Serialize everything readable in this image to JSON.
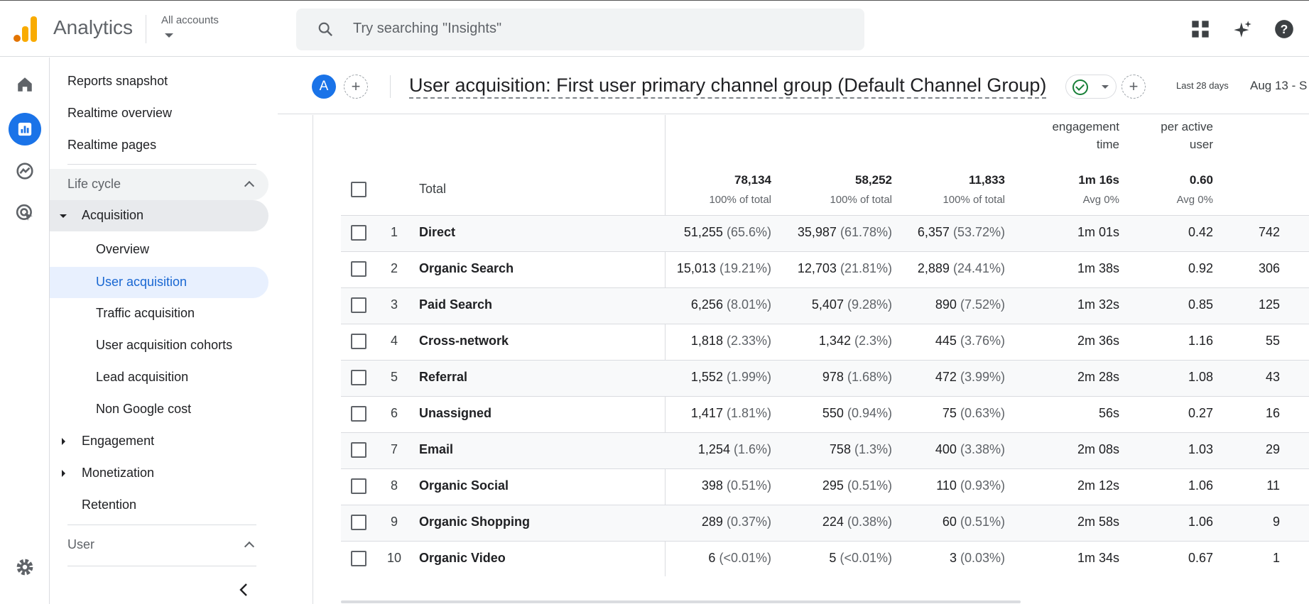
{
  "app": {
    "title": "Analytics",
    "accounts_label": "All accounts",
    "search_placeholder": "Try searching \"Insights\""
  },
  "nav": {
    "top_items": [
      "Reports snapshot",
      "Realtime overview",
      "Realtime pages"
    ],
    "section_life_cycle": "Life cycle",
    "acquisition": "Acquisition",
    "acquisition_children": [
      "Overview",
      "User acquisition",
      "Traffic acquisition",
      "User acquisition cohorts",
      "Lead acquisition",
      "Non Google cost"
    ],
    "engagement": "Engagement",
    "monetization": "Monetization",
    "retention": "Retention",
    "section_user": "User"
  },
  "header": {
    "avatar_letter": "A",
    "report_title": "User acquisition: First user primary channel group (Default Channel Group)",
    "date_badge": "Last 28 days",
    "date_range": "Aug 13 - S"
  },
  "table": {
    "col_headers": [
      {
        "line1": "engagement",
        "line2": "time"
      },
      {
        "line1": "per active",
        "line2": "user"
      }
    ],
    "total": {
      "label": "Total",
      "values": [
        "78,134",
        "58,252",
        "11,833",
        "1m 16s",
        "0.60"
      ],
      "subs": [
        "100% of total",
        "100% of total",
        "100% of total",
        "Avg 0%",
        "Avg 0%"
      ]
    },
    "rows": [
      {
        "n": "1",
        "channel": "Direct",
        "c1": "51,255",
        "p1": "(65.6%)",
        "c2": "35,987",
        "p2": "(61.78%)",
        "c3": "6,357",
        "p3": "(53.72%)",
        "time": "1m 01s",
        "per": "0.42",
        "extra": "742"
      },
      {
        "n": "2",
        "channel": "Organic Search",
        "c1": "15,013",
        "p1": "(19.21%)",
        "c2": "12,703",
        "p2": "(21.81%)",
        "c3": "2,889",
        "p3": "(24.41%)",
        "time": "1m 38s",
        "per": "0.92",
        "extra": "306"
      },
      {
        "n": "3",
        "channel": "Paid Search",
        "c1": "6,256",
        "p1": "(8.01%)",
        "c2": "5,407",
        "p2": "(9.28%)",
        "c3": "890",
        "p3": "(7.52%)",
        "time": "1m 32s",
        "per": "0.85",
        "extra": "125"
      },
      {
        "n": "4",
        "channel": "Cross-network",
        "c1": "1,818",
        "p1": "(2.33%)",
        "c2": "1,342",
        "p2": "(2.3%)",
        "c3": "445",
        "p3": "(3.76%)",
        "time": "2m 36s",
        "per": "1.16",
        "extra": "55"
      },
      {
        "n": "5",
        "channel": "Referral",
        "c1": "1,552",
        "p1": "(1.99%)",
        "c2": "978",
        "p2": "(1.68%)",
        "c3": "472",
        "p3": "(3.99%)",
        "time": "2m 28s",
        "per": "1.08",
        "extra": "43"
      },
      {
        "n": "6",
        "channel": "Unassigned",
        "c1": "1,417",
        "p1": "(1.81%)",
        "c2": "550",
        "p2": "(0.94%)",
        "c3": "75",
        "p3": "(0.63%)",
        "time": "56s",
        "per": "0.27",
        "extra": "16"
      },
      {
        "n": "7",
        "channel": "Email",
        "c1": "1,254",
        "p1": "(1.6%)",
        "c2": "758",
        "p2": "(1.3%)",
        "c3": "400",
        "p3": "(3.38%)",
        "time": "2m 08s",
        "per": "1.03",
        "extra": "29"
      },
      {
        "n": "8",
        "channel": "Organic Social",
        "c1": "398",
        "p1": "(0.51%)",
        "c2": "295",
        "p2": "(0.51%)",
        "c3": "110",
        "p3": "(0.93%)",
        "time": "2m 12s",
        "per": "1.06",
        "extra": "11"
      },
      {
        "n": "9",
        "channel": "Organic Shopping",
        "c1": "289",
        "p1": "(0.37%)",
        "c2": "224",
        "p2": "(0.38%)",
        "c3": "60",
        "p3": "(0.51%)",
        "time": "2m 58s",
        "per": "1.06",
        "extra": "9"
      },
      {
        "n": "10",
        "channel": "Organic Video",
        "c1": "6",
        "p1": "(<0.01%)",
        "c2": "5",
        "p2": "(<0.01%)",
        "c3": "3",
        "p3": "(0.03%)",
        "time": "1m 34s",
        "per": "0.67",
        "extra": "1"
      }
    ]
  },
  "colors": {
    "accent": "#1a73e8",
    "selected_bg": "#e8f0fe",
    "section_bg": "#f1f3f4",
    "logo_orange": "#e37400",
    "logo_yellow": "#f9ab00",
    "success": "#188038"
  },
  "icons": [
    "search-icon",
    "apps-grid-icon",
    "sparkle-icon",
    "help-icon",
    "home-icon",
    "reports-icon",
    "explore-icon",
    "advertising-icon",
    "settings-icon",
    "collapse-chevron-icon"
  ]
}
